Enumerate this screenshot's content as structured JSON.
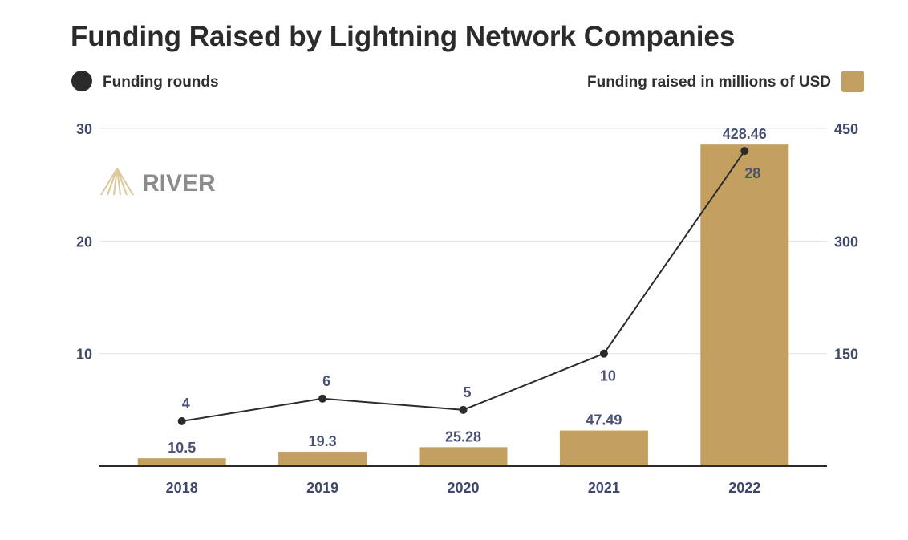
{
  "chart_data": {
    "type": "bar",
    "title": "Funding Raised by Lightning Network Companies",
    "brand": "RIVER",
    "categories": [
      "2018",
      "2019",
      "2020",
      "2021",
      "2022"
    ],
    "series": [
      {
        "name": "Funding raised in millions of USD",
        "type": "bar",
        "axis": "right",
        "values": [
          10.5,
          19.3,
          25.28,
          47.49,
          428.46
        ],
        "labels": [
          "10.5",
          "19.3",
          "25.28",
          "47.49",
          "428.46"
        ],
        "color": "#c4a060"
      },
      {
        "name": "Funding rounds",
        "type": "line",
        "axis": "left",
        "values": [
          4,
          6,
          5,
          10,
          28
        ],
        "labels": [
          "4",
          "6",
          "5",
          "10",
          "28"
        ],
        "color": "#2b2b2b"
      }
    ],
    "left_axis": {
      "ylim": [
        0,
        30
      ],
      "ticks": [
        "10",
        "20",
        "30"
      ]
    },
    "right_axis": {
      "ylim": [
        0,
        450
      ],
      "ticks": [
        "150",
        "300",
        "450"
      ]
    },
    "grid": true,
    "legend": {
      "left": "Funding rounds",
      "right": "Funding raised in millions of USD"
    }
  }
}
